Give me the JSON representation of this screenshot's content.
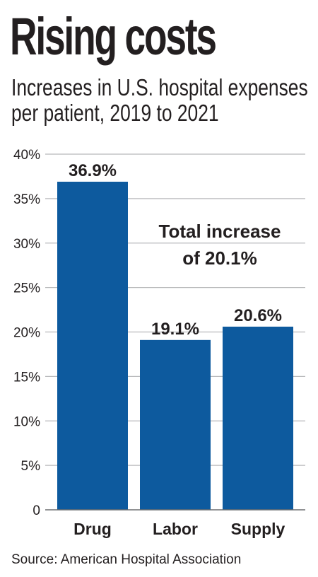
{
  "header": {
    "title": "Rising costs",
    "subtitle_line1": "Increases in U.S. hospital expenses",
    "subtitle_line2": "per patient, 2019 to 2021"
  },
  "chart_data": {
    "type": "bar",
    "categories": [
      "Drug",
      "Labor",
      "Supply"
    ],
    "values": [
      36.9,
      19.1,
      20.6
    ],
    "value_labels": [
      "36.9%",
      "19.1%",
      "20.6%"
    ],
    "yticks": [
      0,
      5,
      10,
      15,
      20,
      25,
      30,
      35,
      40
    ],
    "ytick_labels": [
      "0",
      "5%",
      "10%",
      "15%",
      "20%",
      "25%",
      "30%",
      "35%",
      "40%"
    ],
    "ylim": [
      0,
      40
    ],
    "grid": true,
    "annotation_line1": "Total increase",
    "annotation_line2": "of 20.1%",
    "colors": {
      "bar": "#0d5a9e",
      "grid": "#b8b9bb",
      "text": "#231f20"
    }
  },
  "footer": {
    "source": "Source: American Hospital Association"
  }
}
